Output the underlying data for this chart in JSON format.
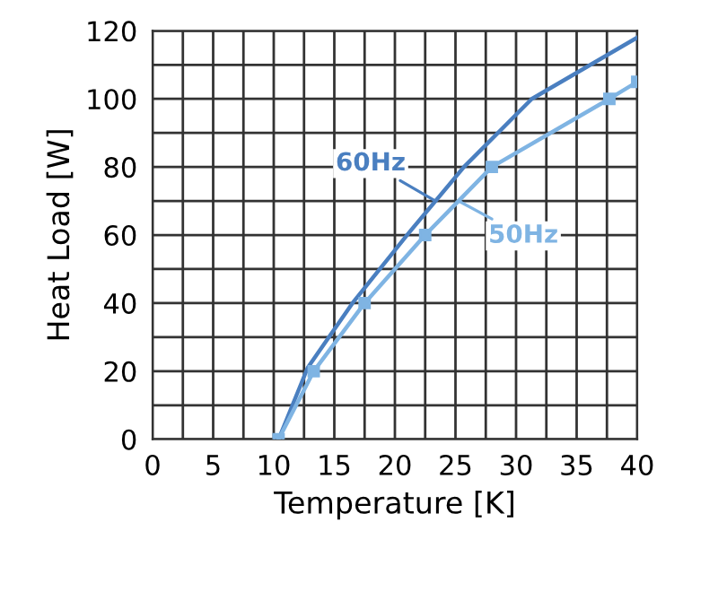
{
  "chart_data": {
    "type": "line",
    "xlabel": "Temperature [K]",
    "ylabel": "Heat Load [W]",
    "xlim": [
      0,
      40
    ],
    "ylim": [
      0,
      120
    ],
    "xticks": [
      0,
      5,
      10,
      15,
      20,
      25,
      30,
      35,
      40
    ],
    "yticks": [
      0,
      20,
      40,
      60,
      80,
      100,
      120
    ],
    "grid": true,
    "series": [
      {
        "name": "60Hz",
        "color": "#4a7fc0",
        "marker": "none",
        "x": [
          10.4,
          12.8,
          16.5,
          21,
          25.7,
          31.3,
          40
        ],
        "values": [
          0,
          21,
          40,
          60,
          80,
          100,
          118
        ]
      },
      {
        "name": "50Hz",
        "color": "#7fb4e3",
        "marker": "square",
        "x": [
          10.4,
          13.3,
          17.5,
          22.5,
          28,
          37.7,
          40
        ],
        "values": [
          0,
          20,
          40,
          60,
          80,
          100,
          105
        ]
      }
    ]
  }
}
